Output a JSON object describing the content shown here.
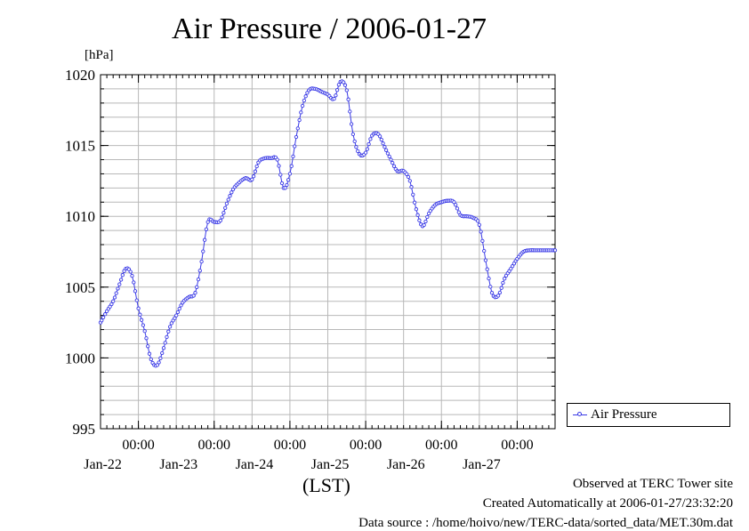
{
  "chart_data": {
    "type": "line",
    "title": "Air Pressure / 2006-01-27",
    "ylabel": "[hPa]",
    "xlabel": "(LST)",
    "ylim": [
      995,
      1020
    ],
    "yticks": [
      995,
      1000,
      1005,
      1010,
      1015,
      1020
    ],
    "xlim": [
      "2006-01-21 12:00",
      "2006-01-27 12:00"
    ],
    "xticks": [
      {
        "time": "2006-01-22 00:00",
        "label": "00:00",
        "date": "Jan-22"
      },
      {
        "time": "2006-01-23 00:00",
        "label": "00:00",
        "date": "Jan-23"
      },
      {
        "time": "2006-01-24 00:00",
        "label": "00:00",
        "date": "Jan-24"
      },
      {
        "time": "2006-01-25 00:00",
        "label": "00:00",
        "date": "Jan-25"
      },
      {
        "time": "2006-01-26 00:00",
        "label": "00:00",
        "date": "Jan-26"
      },
      {
        "time": "2006-01-27 00:00",
        "label": "00:00",
        "date": "Jan-27"
      }
    ],
    "grid": true,
    "legend_position": "right",
    "series": [
      {
        "name": "Air Pressure",
        "color": "#3a3ae6",
        "x": [
          "2006-01-21 12:00",
          "2006-01-21 14:00",
          "2006-01-21 16:00",
          "2006-01-21 18:00",
          "2006-01-21 20:00",
          "2006-01-21 22:00",
          "2006-01-22 00:00",
          "2006-01-22 02:00",
          "2006-01-22 04:00",
          "2006-01-22 06:00",
          "2006-01-22 08:00",
          "2006-01-22 10:00",
          "2006-01-22 12:00",
          "2006-01-22 14:00",
          "2006-01-22 16:00",
          "2006-01-22 18:00",
          "2006-01-22 20:00",
          "2006-01-22 22:00",
          "2006-01-23 00:00",
          "2006-01-23 02:00",
          "2006-01-23 04:00",
          "2006-01-23 06:00",
          "2006-01-23 08:00",
          "2006-01-23 10:00",
          "2006-01-23 12:00",
          "2006-01-23 14:00",
          "2006-01-23 16:00",
          "2006-01-23 18:00",
          "2006-01-23 20:00",
          "2006-01-23 22:00",
          "2006-01-24 00:00",
          "2006-01-24 02:00",
          "2006-01-24 04:00",
          "2006-01-24 06:00",
          "2006-01-24 08:00",
          "2006-01-24 10:00",
          "2006-01-24 12:00",
          "2006-01-24 14:00",
          "2006-01-24 16:00",
          "2006-01-24 18:00",
          "2006-01-24 20:00",
          "2006-01-24 22:00",
          "2006-01-25 00:00",
          "2006-01-25 02:00",
          "2006-01-25 04:00",
          "2006-01-25 06:00",
          "2006-01-25 08:00",
          "2006-01-25 10:00",
          "2006-01-25 12:00",
          "2006-01-25 14:00",
          "2006-01-25 16:00",
          "2006-01-25 18:00",
          "2006-01-25 20:00",
          "2006-01-25 22:00",
          "2006-01-26 00:00",
          "2006-01-26 02:00",
          "2006-01-26 04:00",
          "2006-01-26 06:00",
          "2006-01-26 08:00",
          "2006-01-26 10:00",
          "2006-01-26 12:00",
          "2006-01-26 14:00",
          "2006-01-26 16:00",
          "2006-01-26 18:00",
          "2006-01-26 20:00",
          "2006-01-26 22:00",
          "2006-01-27 00:00",
          "2006-01-27 02:00",
          "2006-01-27 04:00",
          "2006-01-27 06:00",
          "2006-01-27 08:00",
          "2006-01-27 10:00",
          "2006-01-27 12:00"
        ],
        "values": [
          1002.5,
          1003.3,
          1004.0,
          1005.2,
          1006.3,
          1005.8,
          1003.5,
          1001.9,
          999.9,
          999.5,
          1000.7,
          1002.2,
          1003.0,
          1003.9,
          1004.3,
          1004.6,
          1006.8,
          1009.6,
          1009.6,
          1009.7,
          1010.9,
          1011.9,
          1012.4,
          1012.7,
          1012.6,
          1013.8,
          1014.1,
          1014.1,
          1014.0,
          1012.0,
          1013.0,
          1015.6,
          1017.8,
          1018.9,
          1019.0,
          1018.8,
          1018.6,
          1018.3,
          1019.5,
          1018.9,
          1015.8,
          1014.4,
          1014.5,
          1015.7,
          1015.8,
          1014.9,
          1014.0,
          1013.2,
          1013.2,
          1012.5,
          1010.5,
          1009.3,
          1010.2,
          1010.8,
          1011.0,
          1011.1,
          1011.0,
          1010.1,
          1010.0,
          1009.9,
          1009.4,
          1006.9,
          1004.6,
          1004.4,
          1005.6,
          1006.3,
          1007.0,
          1007.5,
          1007.6,
          1007.6,
          1007.6,
          1007.6,
          1007.6
        ]
      }
    ]
  },
  "footer": {
    "site": "Observed at TERC Tower site",
    "created": "Created Automatically at 2006-01-27/23:32:20",
    "source": "Data source : /home/hoivo/new/TERC-data/sorted_data/MET.30m.dat"
  }
}
